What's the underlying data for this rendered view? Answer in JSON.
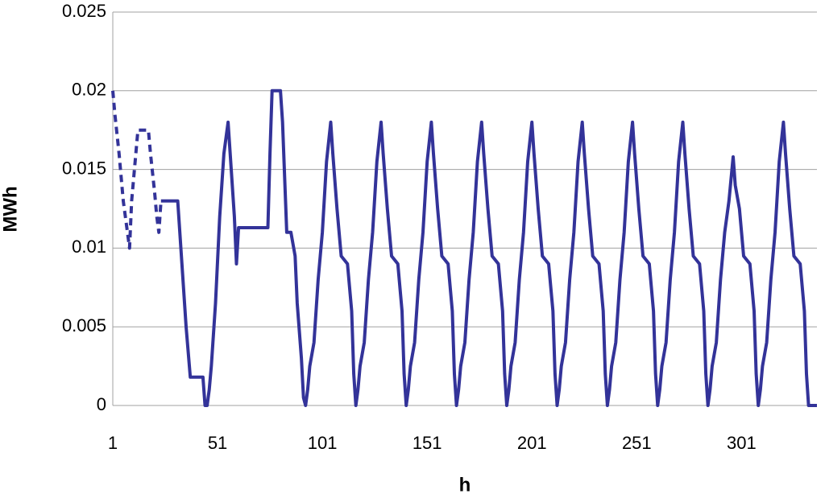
{
  "chart_data": {
    "type": "line",
    "x_label": "h",
    "y_label": "MWh",
    "xlim": [
      1,
      337
    ],
    "xticks": [
      1,
      51,
      101,
      151,
      201,
      251,
      301
    ],
    "ylim": [
      0,
      0.025
    ],
    "yticks": [
      0,
      0.005,
      0.01,
      0.015,
      0.02,
      0.025
    ],
    "grid": true,
    "series": [
      {
        "color": "#333399",
        "dashed": true,
        "x": [
          1,
          2,
          4,
          6,
          8,
          9,
          10,
          12,
          13,
          18,
          19,
          21,
          22,
          23,
          24
        ],
        "values": [
          0.02,
          0.0185,
          0.016,
          0.013,
          0.011,
          0.01,
          0.013,
          0.016,
          0.0175,
          0.0175,
          0.016,
          0.0135,
          0.012,
          0.011,
          0.013
        ]
      },
      {
        "color": "#333399",
        "dashed": false,
        "x": [
          24,
          32,
          34,
          36,
          38,
          44,
          45,
          46,
          47,
          48,
          50,
          52,
          54,
          56,
          57,
          59,
          60,
          61,
          75,
          76,
          77,
          81,
          82,
          84,
          86,
          88,
          89,
          91,
          92,
          93,
          94,
          95,
          97,
          99,
          101,
          103,
          105,
          106,
          108,
          110,
          113,
          115,
          116,
          117,
          118,
          119,
          121,
          123,
          125,
          127,
          129,
          130,
          132,
          134,
          137,
          139,
          140,
          141,
          142,
          143,
          145,
          147,
          149,
          151,
          153,
          154,
          156,
          158,
          161,
          163,
          164,
          165,
          166,
          167,
          169,
          171,
          173,
          175,
          177,
          178,
          180,
          182,
          185,
          187,
          188,
          189,
          190,
          191,
          193,
          195,
          197,
          199,
          201,
          202,
          204,
          206,
          209,
          211,
          212,
          213,
          214,
          215,
          217,
          219,
          221,
          223,
          225,
          226,
          228,
          230,
          233,
          235,
          236,
          237,
          238,
          239,
          241,
          243,
          245,
          247,
          249,
          250,
          252,
          254,
          257,
          259,
          260,
          261,
          262,
          263,
          265,
          267,
          269,
          271,
          273,
          274,
          276,
          278,
          281,
          283,
          284,
          285,
          286,
          287,
          289,
          291,
          293,
          295,
          297,
          298,
          300,
          302,
          305,
          307,
          308,
          309,
          310,
          311,
          313,
          315,
          317,
          319,
          321,
          322,
          324,
          326,
          329,
          331,
          332,
          333,
          337
        ],
        "values": [
          0.013,
          0.013,
          0.009,
          0.005,
          0.0018,
          0.0018,
          0,
          0,
          0.001,
          0.0025,
          0.0065,
          0.012,
          0.016,
          0.018,
          0.016,
          0.012,
          0.009,
          0.0113,
          0.0113,
          0.016,
          0.02,
          0.02,
          0.018,
          0.011,
          0.011,
          0.0095,
          0.0065,
          0.003,
          0.0005,
          0,
          0.001,
          0.0025,
          0.004,
          0.008,
          0.011,
          0.0155,
          0.018,
          0.016,
          0.0125,
          0.0095,
          0.009,
          0.006,
          0.002,
          0,
          0.001,
          0.0025,
          0.004,
          0.008,
          0.011,
          0.0155,
          0.018,
          0.016,
          0.0125,
          0.0095,
          0.009,
          0.006,
          0.002,
          0,
          0.001,
          0.0025,
          0.004,
          0.008,
          0.011,
          0.0155,
          0.018,
          0.016,
          0.0125,
          0.0095,
          0.009,
          0.006,
          0.002,
          0,
          0.001,
          0.0025,
          0.004,
          0.008,
          0.011,
          0.0155,
          0.018,
          0.016,
          0.0125,
          0.0095,
          0.009,
          0.006,
          0.002,
          0,
          0.001,
          0.0025,
          0.004,
          0.008,
          0.011,
          0.0155,
          0.018,
          0.016,
          0.0125,
          0.0095,
          0.009,
          0.006,
          0.002,
          0,
          0.001,
          0.0025,
          0.004,
          0.008,
          0.011,
          0.0155,
          0.018,
          0.016,
          0.0125,
          0.0095,
          0.009,
          0.006,
          0.002,
          0,
          0.001,
          0.0025,
          0.004,
          0.008,
          0.011,
          0.0155,
          0.018,
          0.016,
          0.0125,
          0.0095,
          0.009,
          0.006,
          0.002,
          0,
          0.001,
          0.0025,
          0.004,
          0.008,
          0.011,
          0.0155,
          0.018,
          0.016,
          0.0125,
          0.0095,
          0.009,
          0.006,
          0.002,
          0,
          0.001,
          0.0025,
          0.004,
          0.008,
          0.011,
          0.013,
          0.0158,
          0.014,
          0.0125,
          0.0095,
          0.009,
          0.006,
          0.002,
          0,
          0.001,
          0.0025,
          0.004,
          0.008,
          0.011,
          0.0155,
          0.018,
          0.016,
          0.0125,
          0.0095,
          0.009,
          0.006,
          0.002,
          0,
          0
        ]
      }
    ]
  }
}
